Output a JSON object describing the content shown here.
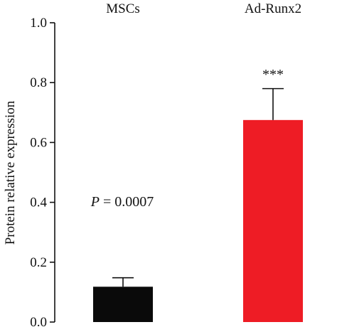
{
  "chart_data": {
    "type": "bar",
    "categories": [
      "MSCs",
      "Ad-Runx2"
    ],
    "values": [
      0.118,
      0.675
    ],
    "errors": [
      0.03,
      0.105
    ],
    "bar_colors": [
      "#0a0a0a",
      "#ee1c25"
    ],
    "ylabel": "Protein relative expression",
    "xlabel": "",
    "ylim": [
      0.0,
      1.0
    ],
    "yticks": [
      "0.0",
      "0.2",
      "0.4",
      "0.6",
      "0.8",
      "1.0"
    ],
    "category_labels_position": "top",
    "annotations": {
      "p_value_prefix": "P",
      "p_value_text": " = 0.0007",
      "significance": "***"
    }
  }
}
